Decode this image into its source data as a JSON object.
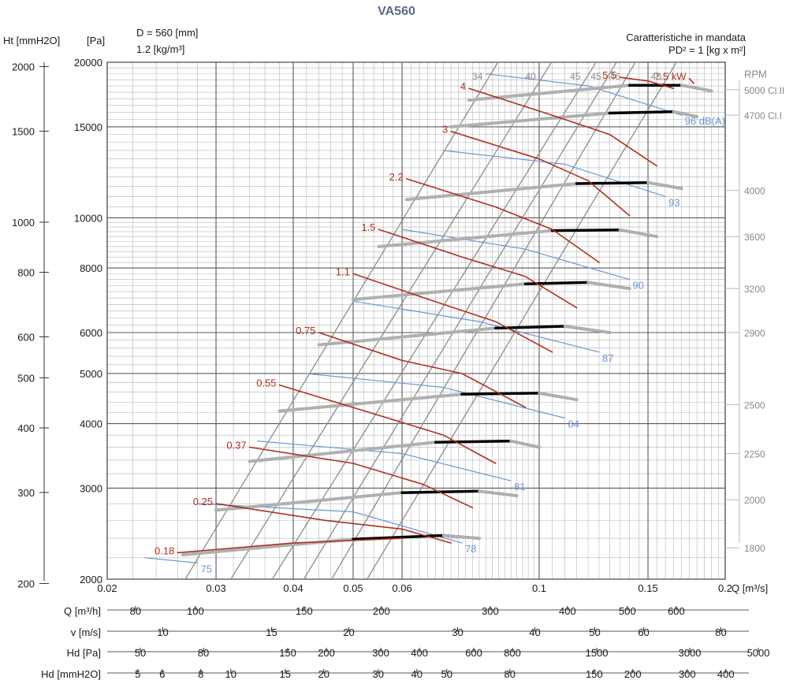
{
  "header": {
    "title": "VA560",
    "ht_unit": "Ht [mmH2O]",
    "pa_unit": "[Pa]",
    "diameter": "D = 560 [mm]",
    "density": "1.2 [kg/m³]",
    "characteristics": "Caratteristiche in mandata",
    "pd2": "PD² = 1 [kg x m²]"
  },
  "chart_data": {
    "type": "line",
    "title": "VA560",
    "xlabel": "Q [m³/s]",
    "ylabel": "[Pa]",
    "xscale": "log",
    "yscale": "log",
    "xlim": [
      0.02,
      0.2
    ],
    "ylim": [
      2000,
      20000
    ],
    "x_ticks": [
      "0.02",
      "0.03",
      "0.04",
      "0.05",
      "0.06",
      "0.1",
      "0.15",
      "0.2"
    ],
    "x_tick_values": [
      0.02,
      0.03,
      0.04,
      0.05,
      0.06,
      0.1,
      0.15,
      0.2
    ],
    "pa_ticks": [
      "2000",
      "3000",
      "4000",
      "5000",
      "6000",
      "8000",
      "10000",
      "15000",
      "20000"
    ],
    "pa_tick_values": [
      2000,
      3000,
      4000,
      5000,
      6000,
      8000,
      10000,
      15000,
      20000
    ],
    "ht_ticks": [
      "200",
      "300",
      "400",
      "500",
      "600",
      "800",
      "1000",
      "1500",
      "2000"
    ],
    "ht_tick_values": [
      200,
      300,
      400,
      500,
      600,
      800,
      1000,
      1500,
      2000
    ],
    "rpm_label": "RPM",
    "rpm_curves": [
      {
        "rpm": "1800",
        "label_p": 2300,
        "pts": [
          [
            0.0265,
            2230
          ],
          [
            0.05,
            2390
          ],
          [
            0.07,
            2430
          ],
          [
            0.08,
            2400
          ]
        ]
      },
      {
        "rpm": "2000",
        "label_p": 2850,
        "pts": [
          [
            0.03,
            2720
          ],
          [
            0.06,
            2940
          ],
          [
            0.08,
            2960
          ],
          [
            0.092,
            2900
          ]
        ]
      },
      {
        "rpm": "2250",
        "label_p": 3500,
        "pts": [
          [
            0.034,
            3380
          ],
          [
            0.068,
            3680
          ],
          [
            0.09,
            3700
          ],
          [
            0.1,
            3600
          ]
        ]
      },
      {
        "rpm": "2500",
        "label_p": 4350,
        "pts": [
          [
            0.038,
            4230
          ],
          [
            0.075,
            4560
          ],
          [
            0.1,
            4580
          ],
          [
            0.115,
            4450
          ]
        ]
      },
      {
        "rpm": "2900",
        "label_p": 6000,
        "pts": [
          [
            0.044,
            5680
          ],
          [
            0.085,
            6120
          ],
          [
            0.11,
            6170
          ],
          [
            0.13,
            6000
          ]
        ]
      },
      {
        "rpm": "3200",
        "label_p": 7300,
        "pts": [
          [
            0.05,
            6950
          ],
          [
            0.095,
            7450
          ],
          [
            0.12,
            7500
          ],
          [
            0.14,
            7300
          ]
        ]
      },
      {
        "rpm": "3600",
        "label_p": 9200,
        "pts": [
          [
            0.055,
            8800
          ],
          [
            0.105,
            9450
          ],
          [
            0.135,
            9480
          ],
          [
            0.155,
            9200
          ]
        ]
      },
      {
        "rpm": "4000",
        "label_p": 11300,
        "pts": [
          [
            0.061,
            10850
          ],
          [
            0.115,
            11650
          ],
          [
            0.15,
            11700
          ],
          [
            0.17,
            11400
          ]
        ]
      },
      {
        "rpm": "4700 Cl.I",
        "label_p": 15800,
        "pts": [
          [
            0.072,
            15000
          ],
          [
            0.13,
            15950
          ],
          [
            0.165,
            16050
          ],
          [
            0.18,
            15700
          ]
        ]
      },
      {
        "rpm": "5000 Cl.II",
        "label_p": 17700,
        "pts": [
          [
            0.077,
            16900
          ],
          [
            0.14,
            18050
          ],
          [
            0.17,
            18050
          ],
          [
            0.19,
            17600
          ]
        ]
      }
    ],
    "power_label_unit": "kW",
    "power_curves": [
      {
        "kw": "0.18",
        "pts": [
          [
            0.026,
            2250
          ],
          [
            0.04,
            2350
          ],
          [
            0.06,
            2400
          ]
        ]
      },
      {
        "kw": "0.25",
        "pts": [
          [
            0.03,
            2800
          ],
          [
            0.045,
            2600
          ],
          [
            0.06,
            2500
          ],
          [
            0.072,
            2350
          ]
        ]
      },
      {
        "kw": "0.37",
        "pts": [
          [
            0.034,
            3600
          ],
          [
            0.05,
            3350
          ],
          [
            0.065,
            3050
          ],
          [
            0.078,
            2750
          ]
        ]
      },
      {
        "kw": "0.55",
        "pts": [
          [
            0.038,
            4750
          ],
          [
            0.055,
            4150
          ],
          [
            0.07,
            3800
          ],
          [
            0.085,
            3350
          ]
        ]
      },
      {
        "kw": "0.75",
        "pts": [
          [
            0.044,
            6000
          ],
          [
            0.06,
            5300
          ],
          [
            0.075,
            5000
          ],
          [
            0.095,
            4300
          ]
        ]
      },
      {
        "kw": "1.1",
        "pts": [
          [
            0.05,
            7800
          ],
          [
            0.07,
            6800
          ],
          [
            0.085,
            6300
          ],
          [
            0.105,
            5500
          ]
        ]
      },
      {
        "kw": "1.5",
        "pts": [
          [
            0.055,
            9500
          ],
          [
            0.075,
            8400
          ],
          [
            0.095,
            7700
          ],
          [
            0.115,
            6700
          ]
        ]
      },
      {
        "kw": "2.2",
        "pts": [
          [
            0.061,
            11900
          ],
          [
            0.085,
            10500
          ],
          [
            0.105,
            9500
          ],
          [
            0.125,
            8200
          ]
        ]
      },
      {
        "kw": "3",
        "pts": [
          [
            0.072,
            14700
          ],
          [
            0.1,
            13000
          ],
          [
            0.12,
            11800
          ],
          [
            0.14,
            10100
          ]
        ]
      },
      {
        "kw": "4",
        "pts": [
          [
            0.077,
            17800
          ],
          [
            0.105,
            15800
          ],
          [
            0.13,
            14500
          ],
          [
            0.155,
            12600
          ]
        ]
      },
      {
        "kw": "5.5",
        "pts": [
          [
            0.135,
            18700
          ],
          [
            0.15,
            18400
          ],
          [
            0.165,
            17800
          ]
        ]
      },
      {
        "kw": "7.5",
        "pts": [
          [
            0.175,
            18600
          ],
          [
            0.178,
            18200
          ]
        ]
      }
    ],
    "efficiency_lines": [
      {
        "label": "34",
        "pts": [
          [
            0.025,
            1750
          ],
          [
            0.09,
            22000
          ]
        ]
      },
      {
        "label": "40",
        "pts": [
          [
            0.03,
            1800
          ],
          [
            0.11,
            22000
          ]
        ]
      },
      {
        "label": "45",
        "pts": [
          [
            0.035,
            1800
          ],
          [
            0.13,
            22000
          ]
        ]
      },
      {
        "label": "45",
        "pts": [
          [
            0.04,
            1850
          ],
          [
            0.14,
            22000
          ]
        ]
      },
      {
        "label": "46",
        "pts": [
          [
            0.045,
            1900
          ],
          [
            0.15,
            22000
          ]
        ]
      },
      {
        "label": "48",
        "pts": [
          [
            0.052,
            1950
          ],
          [
            0.175,
            22000
          ]
        ]
      }
    ],
    "noise_curves": [
      {
        "db": "75",
        "pts": [
          [
            0.023,
            2200
          ],
          [
            0.028,
            2150
          ]
        ]
      },
      {
        "db": "78",
        "pts": [
          [
            0.028,
            2800
          ],
          [
            0.05,
            2700
          ],
          [
            0.075,
            2350
          ]
        ]
      },
      {
        "db": "81",
        "pts": [
          [
            0.035,
            3700
          ],
          [
            0.06,
            3500
          ],
          [
            0.09,
            3100
          ]
        ]
      },
      {
        "db": "84",
        "pts": [
          [
            0.042,
            5000
          ],
          [
            0.07,
            4700
          ],
          [
            0.11,
            4100
          ]
        ]
      },
      {
        "db": "87",
        "pts": [
          [
            0.05,
            6900
          ],
          [
            0.08,
            6300
          ],
          [
            0.125,
            5500
          ]
        ]
      },
      {
        "db": "90",
        "pts": [
          [
            0.06,
            9500
          ],
          [
            0.095,
            8700
          ],
          [
            0.14,
            7600
          ]
        ]
      },
      {
        "db": "93",
        "pts": [
          [
            0.07,
            13500
          ],
          [
            0.11,
            12700
          ],
          [
            0.16,
            11000
          ]
        ]
      },
      {
        "db": "96 dB(A)",
        "pts": [
          [
            0.082,
            19000
          ],
          [
            0.12,
            18000
          ],
          [
            0.17,
            15800
          ]
        ]
      }
    ],
    "sub_axes": [
      {
        "label": "Q [m³/h]",
        "ticks": [
          "80",
          "100",
          "150",
          "200",
          "300",
          "400",
          "500",
          "600"
        ],
        "values": [
          80,
          100,
          150,
          200,
          300,
          400,
          500,
          600
        ],
        "q_factor": 0.000277778
      },
      {
        "label": "v [m/s]",
        "ticks": [
          "10",
          "15",
          "20",
          "30",
          "40",
          "50",
          "60",
          "80"
        ],
        "values": [
          10,
          15,
          20,
          30,
          40,
          50,
          60,
          80
        ],
        "q_factor": 0.00246
      },
      {
        "label": "Hd [Pa]",
        "ticks": [
          "50",
          "80",
          "150",
          "200",
          "300",
          "400",
          "600",
          "800",
          "1500",
          "3000",
          "5000"
        ],
        "values": [
          50,
          80,
          150,
          200,
          300,
          400,
          600,
          800,
          1500,
          3000,
          5000
        ],
        "q_factor": "sqrt"
      },
      {
        "label": "Hd [mmH2O]",
        "ticks": [
          "5",
          "6",
          "8",
          "10",
          "15",
          "20",
          "30",
          "40",
          "50",
          "80",
          "150",
          "200",
          "300",
          "400"
        ],
        "values": [
          5,
          6,
          8,
          10,
          15,
          20,
          30,
          40,
          50,
          80,
          150,
          200,
          300,
          400
        ],
        "q_factor": "sqrt10"
      }
    ],
    "colors": {
      "rpm": "#000000",
      "power": "#b03020",
      "efficiency": "#8c8c8c",
      "noise": "#6a96d4",
      "grid": "#b4b4b4"
    }
  }
}
